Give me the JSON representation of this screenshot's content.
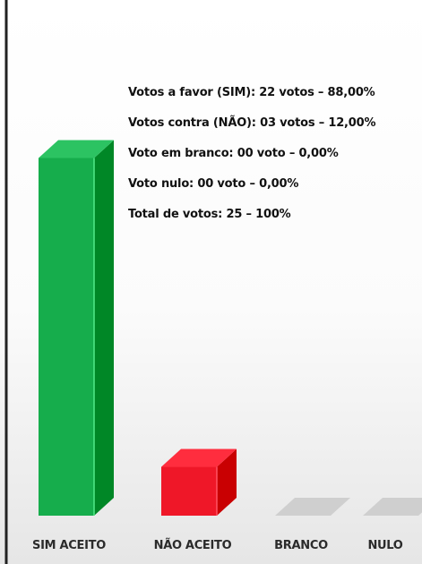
{
  "chart_data": {
    "type": "bar",
    "categories": [
      "SIM ACEITO",
      "NÃO ACEITO",
      "BRANCO",
      "NULO"
    ],
    "values": [
      22,
      3,
      0,
      0
    ],
    "ylim": [
      0,
      25
    ],
    "grid": false,
    "colors": {
      "SIM ACEITO": "#16ad4c",
      "NÃO ACEITO": "#ef1728",
      "BRANCO": "#cfcfcf",
      "NULO": "#cfcfcf"
    },
    "annotations": [
      "Votos a favor (SIM): 22 votos – 88,00%",
      "Votos contra (NÃO): 03 votos – 12,00%",
      "Voto em branco: 00 voto – 0,00%",
      "Voto nulo: 00 voto – 0,00%",
      "Total de votos: 25 – 100%"
    ]
  }
}
